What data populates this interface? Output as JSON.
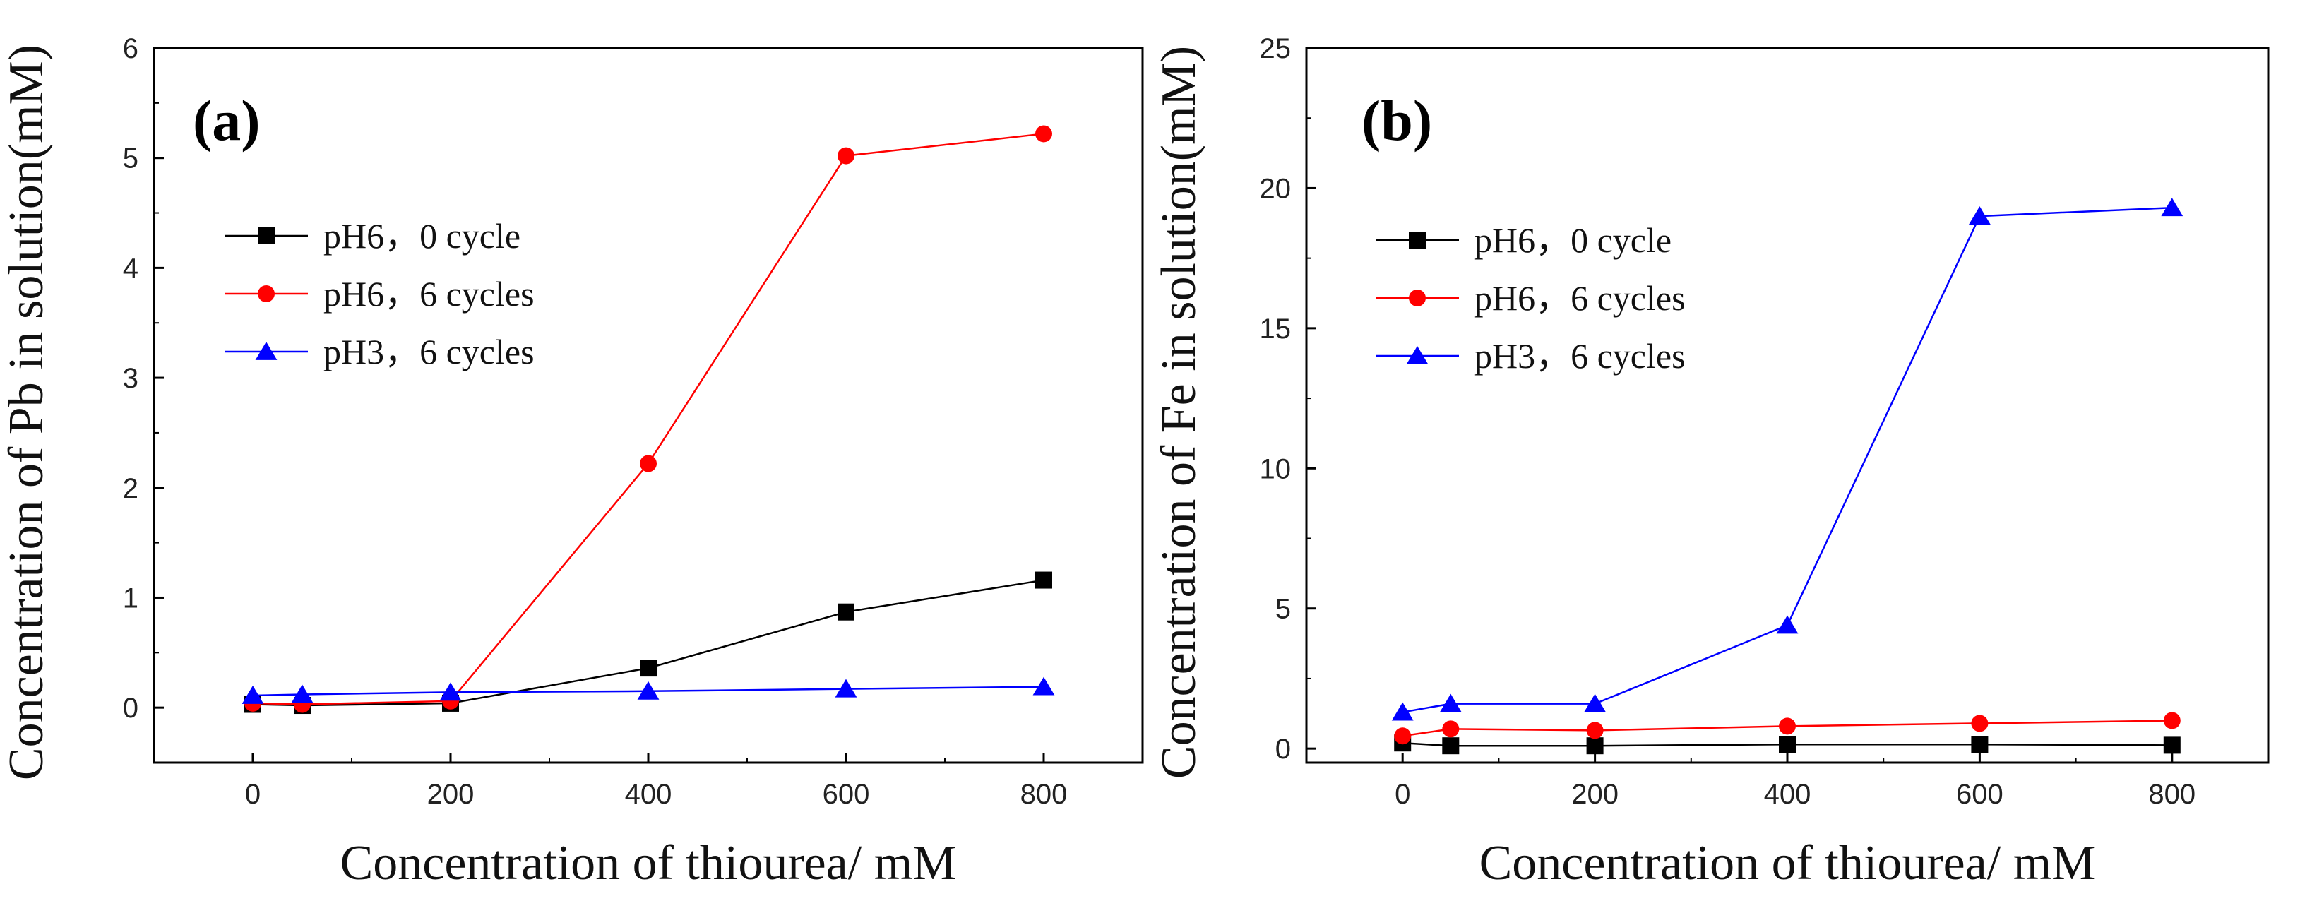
{
  "chart_data": [
    {
      "type": "line",
      "panel_label": "(a)",
      "xlabel": "Concentration of thiourea/ mM",
      "ylabel": "Concentration of Pb in solution(mM)",
      "xlim": [
        -100,
        900
      ],
      "ylim": [
        -0.5,
        6
      ],
      "xticks": [
        0,
        200,
        400,
        600,
        800
      ],
      "yticks": [
        0,
        1,
        2,
        3,
        4,
        5,
        6
      ],
      "legend_position": "upper-left",
      "series": [
        {
          "name": "pH6，0 cycle",
          "color": "#000000",
          "marker": "square",
          "x": [
            0,
            50,
            200,
            400,
            600,
            800
          ],
          "y": [
            0.03,
            0.02,
            0.04,
            0.36,
            0.87,
            1.16
          ]
        },
        {
          "name": "pH6，6 cycles",
          "color": "#ff0000",
          "marker": "circle",
          "x": [
            0,
            50,
            200,
            400,
            600,
            800
          ],
          "y": [
            0.04,
            0.03,
            0.06,
            2.22,
            5.02,
            5.22
          ]
        },
        {
          "name": "pH3，6 cycles",
          "color": "#0000ff",
          "marker": "triangle",
          "x": [
            0,
            50,
            200,
            400,
            600,
            800
          ],
          "y": [
            0.11,
            0.12,
            0.14,
            0.15,
            0.17,
            0.19
          ]
        }
      ]
    },
    {
      "type": "line",
      "panel_label": "(b)",
      "xlabel": "Concentration of thiourea/ mM",
      "ylabel": "Concentration of Fe in solution(mM)",
      "xlim": [
        -100,
        900
      ],
      "ylim": [
        -0.5,
        25
      ],
      "xticks": [
        0,
        200,
        400,
        600,
        800
      ],
      "yticks": [
        0,
        5,
        10,
        15,
        20,
        25
      ],
      "legend_position": "upper-left",
      "series": [
        {
          "name": "pH6，0 cycle",
          "color": "#000000",
          "marker": "square",
          "x": [
            0,
            50,
            200,
            400,
            600,
            800
          ],
          "y": [
            0.2,
            0.1,
            0.1,
            0.15,
            0.15,
            0.12
          ]
        },
        {
          "name": "pH6，6 cycles",
          "color": "#ff0000",
          "marker": "circle",
          "x": [
            0,
            50,
            200,
            400,
            600,
            800
          ],
          "y": [
            0.45,
            0.7,
            0.65,
            0.8,
            0.9,
            1.0
          ]
        },
        {
          "name": "pH3，6 cycles",
          "color": "#0000ff",
          "marker": "triangle",
          "x": [
            0,
            50,
            200,
            400,
            600,
            800
          ],
          "y": [
            1.3,
            1.6,
            1.6,
            4.4,
            19.0,
            19.3
          ]
        }
      ]
    }
  ]
}
